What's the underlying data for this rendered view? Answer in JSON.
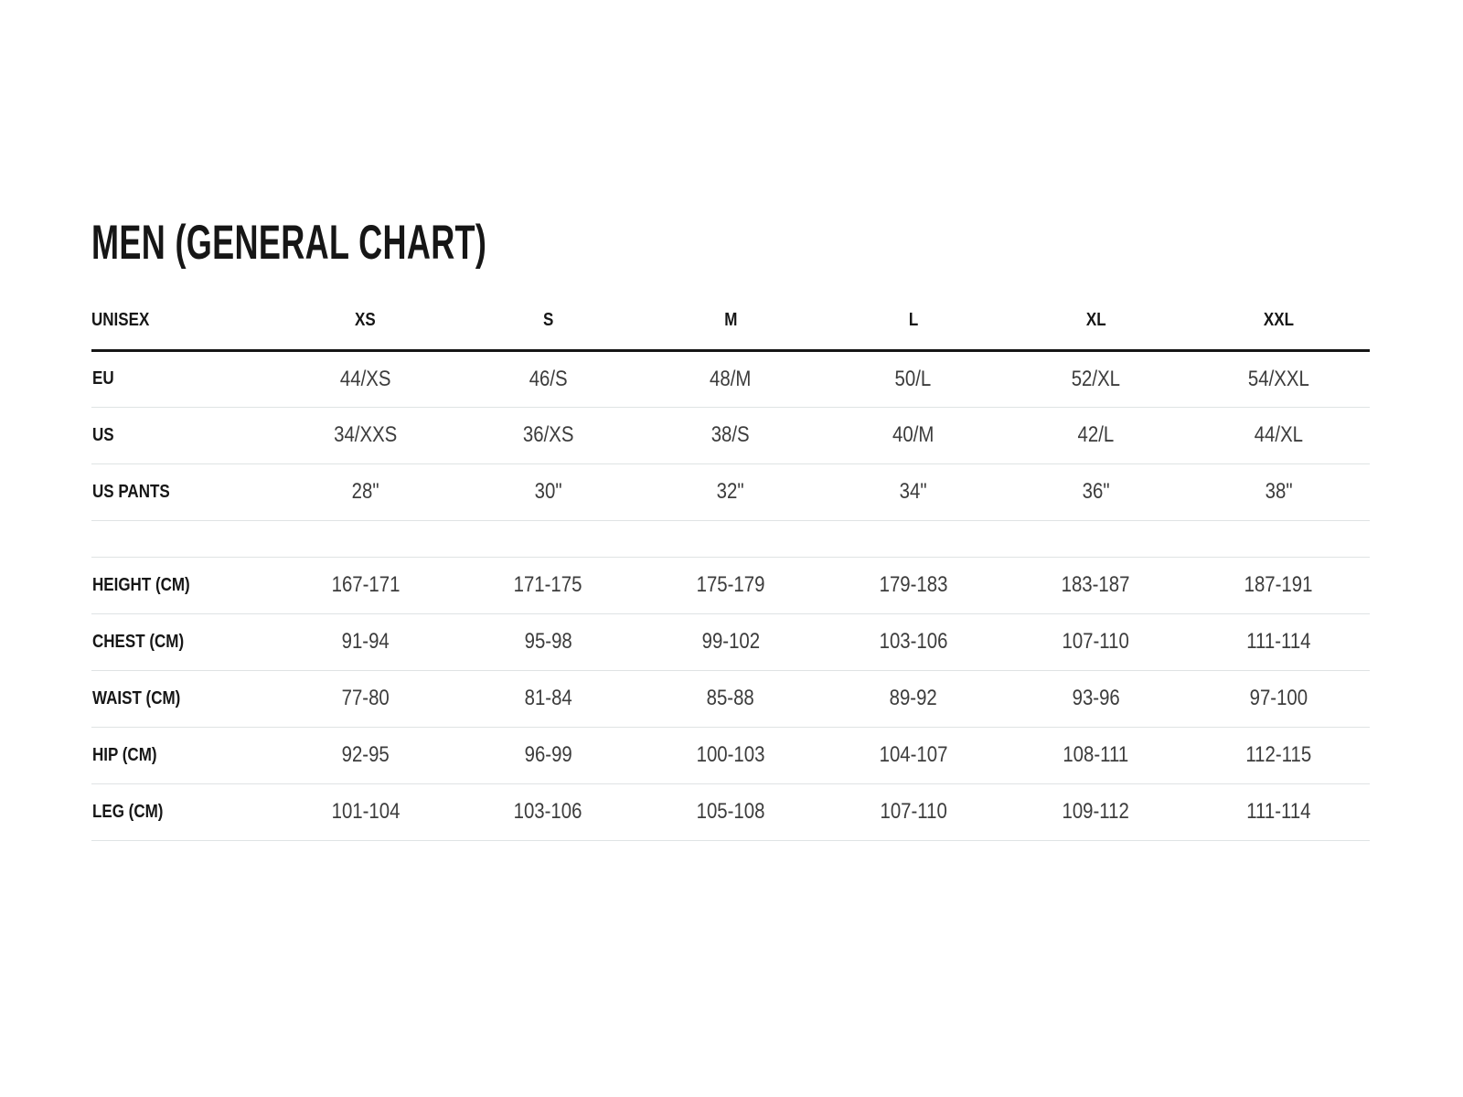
{
  "page": {
    "title": "MEN (GENERAL CHART)"
  },
  "table": {
    "columns": [
      "UNISEX",
      "XS",
      "S",
      "M",
      "L",
      "XL",
      "XXL"
    ],
    "rows": [
      {
        "label": "EU",
        "values": [
          "44/XS",
          "46/S",
          "48/M",
          "50/L",
          "52/XL",
          "54/XXL"
        ]
      },
      {
        "label": "US",
        "values": [
          "34/XXS",
          "36/XS",
          "38/S",
          "40/M",
          "42/L",
          "44/XL"
        ]
      },
      {
        "label": "US PANTS",
        "values": [
          "28\"",
          "30\"",
          "32\"",
          "34\"",
          "36\"",
          "38\""
        ]
      },
      {
        "label": "",
        "values": [
          "",
          "",
          "",
          "",
          "",
          ""
        ],
        "spacer": true
      },
      {
        "label": "HEIGHT (CM)",
        "values": [
          "167-171",
          "171-175",
          "175-179",
          "179-183",
          "183-187",
          "187-191"
        ]
      },
      {
        "label": "CHEST (CM)",
        "values": [
          "91-94",
          "95-98",
          "99-102",
          "103-106",
          "107-110",
          "111-114"
        ]
      },
      {
        "label": "WAIST (CM)",
        "values": [
          "77-80",
          "81-84",
          "85-88",
          "89-92",
          "93-96",
          "97-100"
        ]
      },
      {
        "label": "HIP (CM)",
        "values": [
          "92-95",
          "96-99",
          "100-103",
          "104-107",
          "108-111",
          "112-115"
        ]
      },
      {
        "label": "LEG (CM)",
        "values": [
          "101-104",
          "103-106",
          "105-108",
          "107-110",
          "109-112",
          "111-114"
        ]
      }
    ]
  },
  "style": {
    "header_rule_color": "#161616",
    "divider_color": "#dfe3e4",
    "label_color": "#161616",
    "value_color": "#3c3c3c",
    "background_color": "#ffffff"
  }
}
